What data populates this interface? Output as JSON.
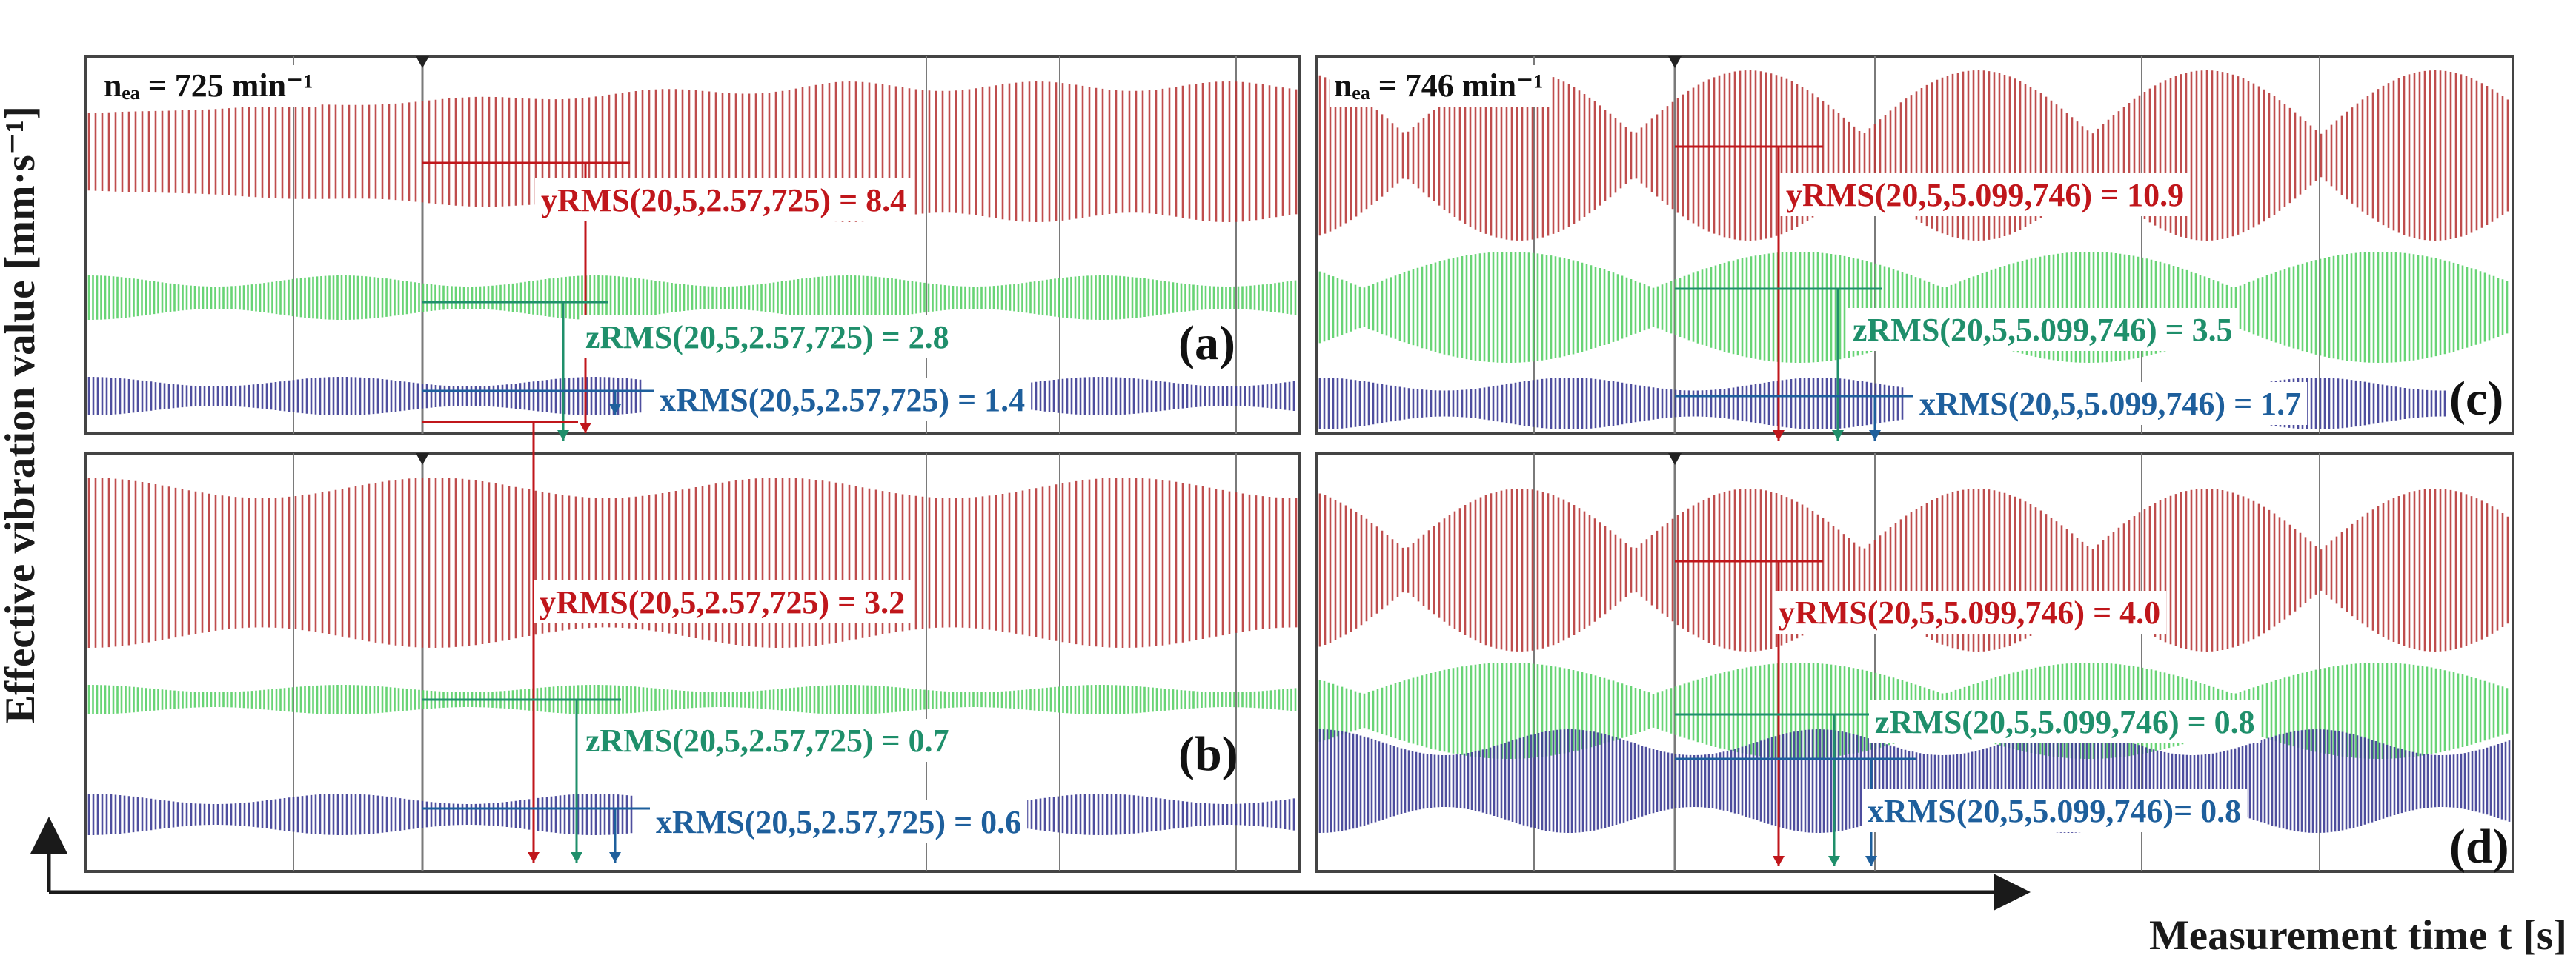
{
  "colors": {
    "y": "#b83a3a",
    "z": "#58cf66",
    "x": "#3b3b93",
    "y_label": "#c0161b",
    "z_label": "#1f8f6b",
    "x_label": "#1e5f9c",
    "frame": "#444444",
    "grid": "#7a7a7a"
  },
  "chart_data": {
    "type": "line",
    "description_mode": "four waveform panels of effective vibration value versus measurement time",
    "xlabel": "Measurement time t [s]",
    "ylabel": "Effective vibration value [mm·s⁻¹]",
    "grid": true,
    "panels": [
      {
        "id": "a",
        "panel_label": "(a)",
        "speed_label": "nₑₐ = 725 min⁻¹",
        "series": [
          {
            "name": "y",
            "label": "yRMS(20,5,2.57,725) = 8.4",
            "value": 8.4
          },
          {
            "name": "z",
            "label": "zRMS(20,5,2.57,725) = 2.8",
            "value": 2.8
          },
          {
            "name": "x",
            "label": "xRMS(20,5,2.57,725) = 1.4",
            "value": 1.4
          }
        ]
      },
      {
        "id": "b",
        "panel_label": "(b)",
        "speed_label": "",
        "series": [
          {
            "name": "y",
            "label": "yRMS(20,5,2.57,725) = 3.2",
            "value": 3.2
          },
          {
            "name": "z",
            "label": "zRMS(20,5,2.57,725) = 0.7",
            "value": 0.7
          },
          {
            "name": "x",
            "label": "xRMS(20,5,2.57,725) = 0.6",
            "value": 0.6
          }
        ]
      },
      {
        "id": "c",
        "panel_label": "(c)",
        "speed_label": "nₑₐ = 746 min⁻¹",
        "series": [
          {
            "name": "y",
            "label": "yRMS(20,5,5.099,746) = 10.9",
            "value": 10.9
          },
          {
            "name": "z",
            "label": "zRMS(20,5,5.099,746) = 3.5",
            "value": 3.5
          },
          {
            "name": "x",
            "label": "xRMS(20,5,5.099,746) = 1.7",
            "value": 1.7
          }
        ]
      },
      {
        "id": "d",
        "panel_label": "(d)",
        "speed_label": "",
        "series": [
          {
            "name": "y",
            "label": "yRMS(20,5,5.099,746) = 4.0",
            "value": 4.0
          },
          {
            "name": "z",
            "label": "zRMS(20,5,5.099,746) = 0.8",
            "value": 0.8
          },
          {
            "name": "x",
            "label": "xRMS(20,5,5.099,746)= 0.8",
            "value": 0.8
          }
        ]
      }
    ]
  }
}
